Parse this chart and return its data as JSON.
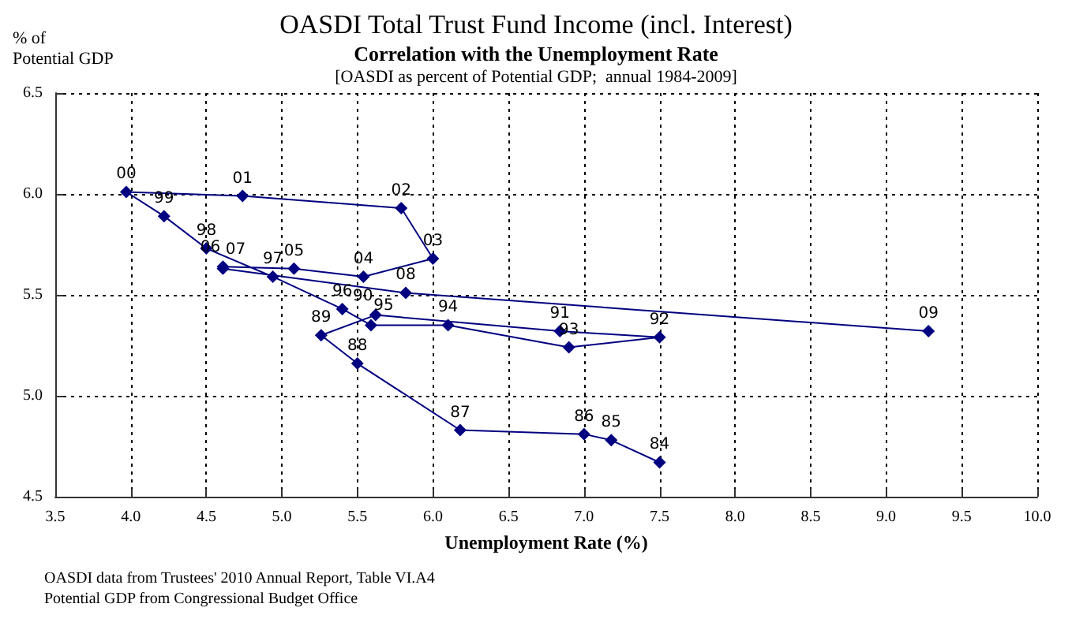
{
  "chart_data": {
    "type": "line",
    "title": "OASDI Total Trust Fund Income (incl. Interest)",
    "subtitle": "Correlation with the Unemployment Rate\n[OASDI as percent of Potential GDP;  annual 1984-2009]",
    "xlabel": "Unemployment Rate (%)",
    "ylabel": "% of\nPotential GDP",
    "x": [
      7.5,
      7.18,
      7.0,
      6.18,
      5.5,
      5.26,
      5.62,
      6.84,
      7.5,
      6.9,
      6.1,
      5.59,
      5.4,
      4.94,
      4.5,
      4.22,
      3.97,
      4.74,
      5.79,
      6.0,
      5.54,
      5.08,
      4.61,
      4.61,
      5.82,
      9.28
    ],
    "series": [
      {
        "color": "#000080",
        "values": [
          4.67,
          4.78,
          4.81,
          4.83,
          5.16,
          5.3,
          5.4,
          5.32,
          5.29,
          5.24,
          5.35,
          5.35,
          5.43,
          5.59,
          5.73,
          5.89,
          6.01,
          5.99,
          5.93,
          5.68,
          5.59,
          5.63,
          5.64,
          5.63,
          5.51,
          5.32
        ]
      }
    ],
    "marker": "diamond",
    "grid": true,
    "xlim": [
      3.5,
      10.0
    ],
    "xticks": [
      3.5,
      {
        "value": 4,
        "label": "4.0"
      },
      4.5,
      {
        "value": 5,
        "label": "5.0"
      },
      5.5,
      {
        "value": 6,
        "label": "6.0"
      },
      6.5,
      {
        "value": 7,
        "label": "7.0"
      },
      7.5,
      {
        "value": 8,
        "label": "8.0"
      },
      8.5,
      {
        "value": 9,
        "label": "9.0"
      },
      9.5,
      {
        "value": 10,
        "label": "10.0"
      }
    ],
    "ylim": [
      4.5,
      6.5
    ],
    "yticks": [
      4.5,
      {
        "value": 5,
        "label": "5.0"
      },
      5.5,
      {
        "value": 6,
        "label": "6.0"
      },
      6.5
    ],
    "annotations": [
      {
        "text": "84",
        "x": 7.5,
        "y": 4.67
      },
      {
        "text": "85",
        "x": 7.18,
        "y": 4.78
      },
      {
        "text": "86",
        "x": 7.0,
        "y": 4.81
      },
      {
        "text": "87",
        "x": 6.18,
        "y": 4.83
      },
      {
        "text": "88",
        "x": 5.5,
        "y": 5.16
      },
      {
        "text": "89",
        "x": 5.26,
        "y": 5.3
      },
      {
        "text": "90",
        "x": 5.62,
        "y": 5.4
      },
      {
        "text": "91",
        "x": 6.84,
        "y": 5.32
      },
      {
        "text": "92",
        "x": 7.5,
        "y": 5.29
      },
      {
        "text": "93",
        "x": 6.9,
        "y": 5.24
      },
      {
        "text": "94",
        "x": 6.1,
        "y": 5.35
      },
      {
        "text": "95",
        "x": 5.59,
        "y": 5.35
      },
      {
        "text": "96",
        "x": 5.4,
        "y": 5.43
      },
      {
        "text": "97",
        "x": 4.94,
        "y": 5.59
      },
      {
        "text": "98",
        "x": 4.5,
        "y": 5.73
      },
      {
        "text": "99",
        "x": 4.22,
        "y": 5.89
      },
      {
        "text": "00",
        "x": 3.97,
        "y": 6.01
      },
      {
        "text": "01",
        "x": 4.74,
        "y": 5.99
      },
      {
        "text": "02",
        "x": 5.79,
        "y": 5.93
      },
      {
        "text": "03",
        "x": 6.0,
        "y": 5.68
      },
      {
        "text": "04",
        "x": 5.54,
        "y": 5.59
      },
      {
        "text": "05",
        "x": 5.08,
        "y": 5.63
      },
      {
        "text": "06",
        "x": 4.61,
        "y": 5.64
      },
      {
        "text": "07",
        "x": 4.61,
        "y": 5.63
      },
      {
        "text": "08",
        "x": 5.82,
        "y": 5.51
      },
      {
        "text": "09",
        "x": 9.28,
        "y": 5.32
      },
      "OASDI data from Trustees' 2010 Annual Report, Table VI.A4",
      "Potential GDP from Congressional Budget Office"
    ]
  }
}
